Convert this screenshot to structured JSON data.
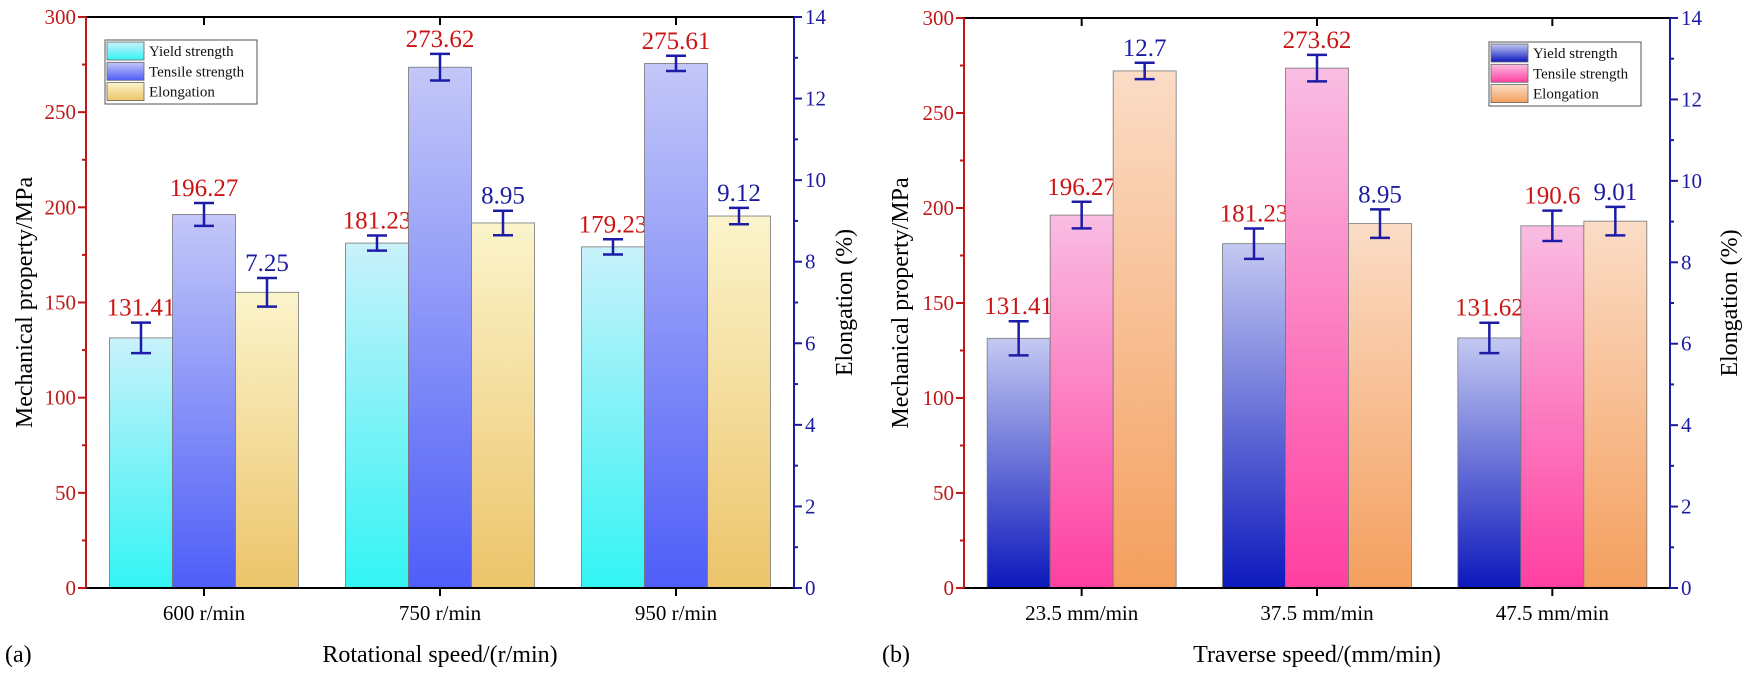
{
  "chart_data": [
    {
      "type": "bar",
      "panel_label": "(a)",
      "categories": [
        "600 r/min",
        "750 r/min",
        "950 r/min"
      ],
      "xlabel": "Rotational speed/(r/min)",
      "ylabel": "Mechanical property/MPa",
      "y2label": "Elongation (%)",
      "ylim": [
        0,
        300
      ],
      "y2lim": [
        0,
        14
      ],
      "yticks": [
        "0",
        "50",
        "100",
        "150",
        "200",
        "250",
        "300"
      ],
      "y2ticks": [
        "0",
        "2",
        "4",
        "6",
        "8",
        "10",
        "12",
        "14"
      ],
      "legend_position": "top-left",
      "series": [
        {
          "name": "Yield strength",
          "axis": "left",
          "values": [
            131.41,
            181.23,
            179.23
          ],
          "labels": [
            "131.41",
            "181.23",
            "179.23"
          ],
          "errors": [
            8,
            4,
            4
          ],
          "color_top": "#c9f1fb",
          "color_bottom": "#33f4f4"
        },
        {
          "name": "Tensile strength",
          "axis": "left",
          "values": [
            196.27,
            273.62,
            275.61
          ],
          "labels": [
            "196.27",
            "273.62",
            "275.61"
          ],
          "errors": [
            6,
            7,
            4
          ],
          "color_top": "#c3c7f8",
          "color_bottom": "#4e5ef8"
        },
        {
          "name": "Elongation",
          "axis": "right",
          "values": [
            7.25,
            8.95,
            9.12
          ],
          "labels": [
            "7.25",
            "8.95",
            "9.12"
          ],
          "errors": [
            0.35,
            0.3,
            0.2
          ],
          "color_top": "#fbf4cb",
          "color_bottom": "#ecc46a"
        }
      ],
      "left_axis_color": "#c01818",
      "right_axis_color": "#1c1ca0"
    },
    {
      "type": "bar",
      "panel_label": "(b)",
      "categories": [
        "23.5 mm/min",
        "37.5 mm/min",
        "47.5 mm/min"
      ],
      "xlabel": "Traverse speed/(mm/min)",
      "ylabel": "Mechanical property/MPa",
      "y2label": "Elongation (%)",
      "ylim": [
        0,
        300
      ],
      "y2lim": [
        0,
        14
      ],
      "yticks": [
        "0",
        "50",
        "100",
        "150",
        "200",
        "250",
        "300"
      ],
      "y2ticks": [
        "0",
        "2",
        "4",
        "6",
        "8",
        "10",
        "12",
        "14"
      ],
      "legend_position": "top-right",
      "series": [
        {
          "name": "Yield strength",
          "axis": "left",
          "values": [
            131.41,
            181.23,
            131.62
          ],
          "labels": [
            "131.41",
            "181.23",
            "131.62"
          ],
          "errors": [
            9,
            8,
            8
          ],
          "color_top": "#c4c9f2",
          "color_bottom": "#0c18bc"
        },
        {
          "name": "Tensile strength",
          "axis": "left",
          "values": [
            196.27,
            273.62,
            190.6
          ],
          "labels": [
            "196.27",
            "273.62",
            "190.6"
          ],
          "errors": [
            7,
            7,
            8
          ],
          "color_top": "#f9bde2",
          "color_bottom": "#ff3fa0"
        },
        {
          "name": "Elongation",
          "axis": "right",
          "values": [
            12.7,
            8.95,
            9.01
          ],
          "labels": [
            "12.7",
            "8.95",
            "9.01"
          ],
          "errors": [
            0.2,
            0.35,
            0.35
          ],
          "color_top": "#fbdcc6",
          "color_bottom": "#f49f5e"
        }
      ],
      "left_axis_color": "#c01818",
      "right_axis_color": "#1c1ca0"
    }
  ]
}
